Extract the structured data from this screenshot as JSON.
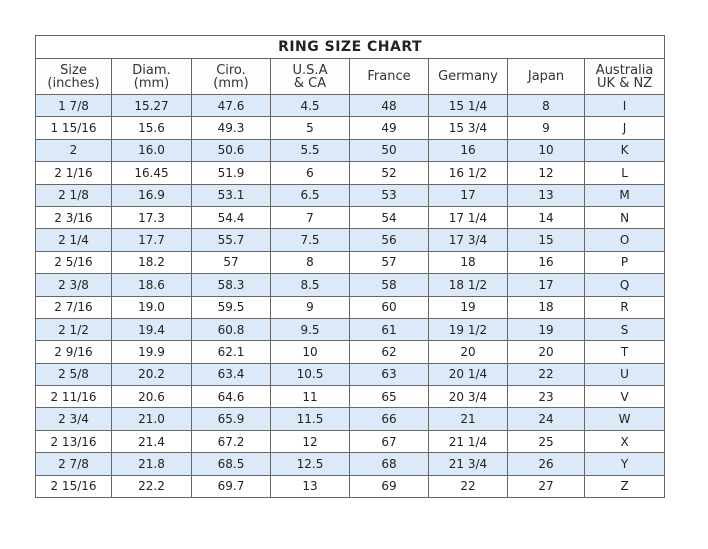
{
  "title": "RING SIZE CHART",
  "columns": [
    "Size\n(inches)",
    "Diam.\n(mm)",
    "Ciro.\n(mm)",
    "U.S.A\n& CA",
    "France",
    "Germany",
    "Japan",
    "Australia\nUK & NZ"
  ],
  "rows": [
    [
      "1 7/8",
      "15.27",
      "47.6",
      "4.5",
      "48",
      "15 1/4",
      "8",
      "I"
    ],
    [
      "1 15/16",
      "15.6",
      "49.3",
      "5",
      "49",
      "15 3/4",
      "9",
      "J"
    ],
    [
      "2",
      "16.0",
      "50.6",
      "5.5",
      "50",
      "16",
      "10",
      "K"
    ],
    [
      "2 1/16",
      "16.45",
      "51.9",
      "6",
      "52",
      "16 1/2",
      "12",
      "L"
    ],
    [
      "2 1/8",
      "16.9",
      "53.1",
      "6.5",
      "53",
      "17",
      "13",
      "M"
    ],
    [
      "2 3/16",
      "17.3",
      "54.4",
      "7",
      "54",
      "17 1/4",
      "14",
      "N"
    ],
    [
      "2 1/4",
      "17.7",
      "55.7",
      "7.5",
      "56",
      "17 3/4",
      "15",
      "O"
    ],
    [
      "2 5/16",
      "18.2",
      "57",
      "8",
      "57",
      "18",
      "16",
      "P"
    ],
    [
      "2 3/8",
      "18.6",
      "58.3",
      "8.5",
      "58",
      "18 1/2",
      "17",
      "Q"
    ],
    [
      "2 7/16",
      "19.0",
      "59.5",
      "9",
      "60",
      "19",
      "18",
      "R"
    ],
    [
      "2 1/2",
      "19.4",
      "60.8",
      "9.5",
      "61",
      "19 1/2",
      "19",
      "S"
    ],
    [
      "2 9/16",
      "19.9",
      "62.1",
      "10",
      "62",
      "20",
      "20",
      "T"
    ],
    [
      "2 5/8",
      "20.2",
      "63.4",
      "10.5",
      "63",
      "20 1/4",
      "22",
      "U"
    ],
    [
      "2 11/16",
      "20.6",
      "64.6",
      "11",
      "65",
      "20 3/4",
      "23",
      "V"
    ],
    [
      "2 3/4",
      "21.0",
      "65.9",
      "11.5",
      "66",
      "21",
      "24",
      "W"
    ],
    [
      "2 13/16",
      "21.4",
      "67.2",
      "12",
      "67",
      "21 1/4",
      "25",
      "X"
    ],
    [
      "2 7/8",
      "21.8",
      "68.5",
      "12.5",
      "68",
      "21 3/4",
      "26",
      "Y"
    ],
    [
      "2 15/16",
      "22.2",
      "69.7",
      "13",
      "69",
      "22",
      "27",
      "Z"
    ]
  ],
  "colors": {
    "stripe": "#dbe9f8",
    "border": "#666666"
  }
}
